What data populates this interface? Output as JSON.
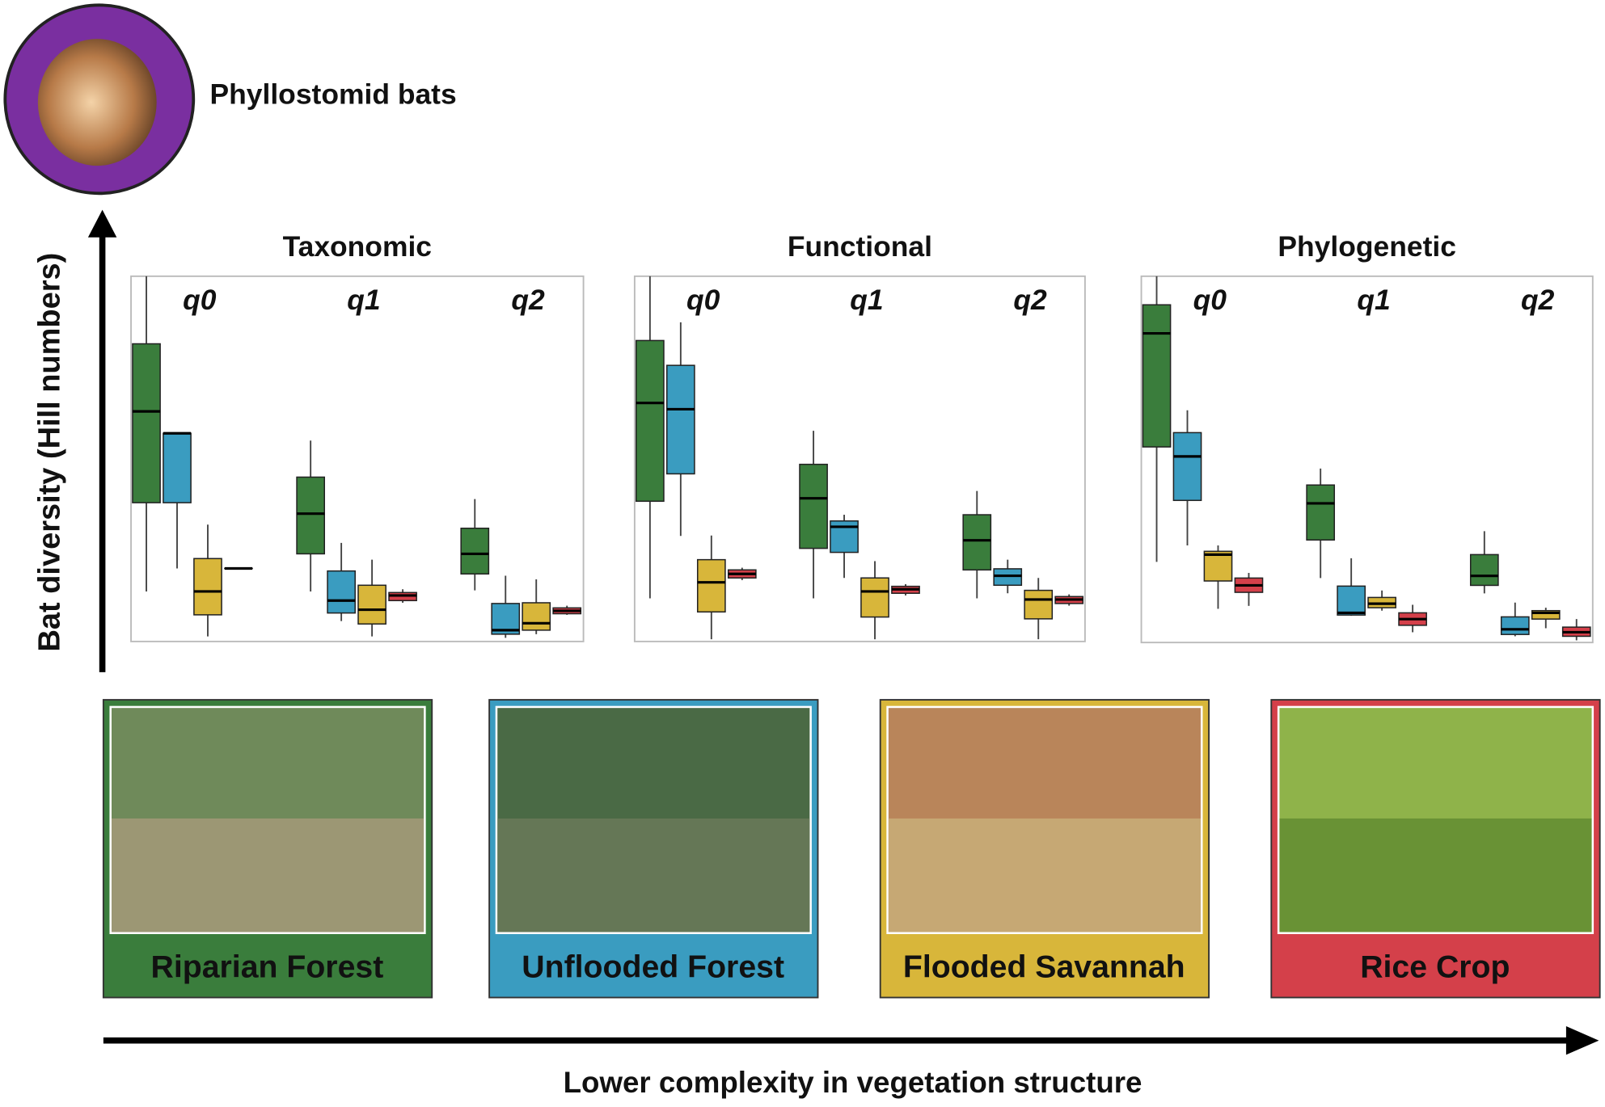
{
  "header": {
    "title": "Phyllostomid bats"
  },
  "y_axis_label": "Bat diversity (Hill numbers)",
  "x_axis_label": "Lower complexity in vegetation structure",
  "chart_data": [
    {
      "type": "box",
      "title": "Taxonomic",
      "categories": [
        "q0",
        "q1",
        "q2"
      ],
      "ylim": [
        0,
        100
      ],
      "series": [
        {
          "name": "Riparian Forest",
          "color": "#3a7d3c",
          "values": [
            {
              "min": 13.7,
              "q1": 38,
              "median": 63,
              "q3": 81.5,
              "max": 100
            },
            {
              "min": 13.7,
              "q1": 24,
              "median": 35,
              "q3": 45,
              "max": 55
            },
            {
              "min": 14,
              "q1": 18.5,
              "median": 24,
              "q3": 31,
              "max": 39
            }
          ]
        },
        {
          "name": "Unflooded Forest",
          "color": "#3a9cc0",
          "values": [
            {
              "min": 20,
              "q1": 38,
              "median": 57,
              "q3": 57,
              "max": 57
            },
            {
              "min": 5.6,
              "q1": 7.8,
              "median": 11.2,
              "q3": 19.3,
              "max": 27
            },
            {
              "min": 1,
              "q1": 2,
              "median": 3.1,
              "q3": 10.4,
              "max": 18
            }
          ]
        },
        {
          "name": "Flooded Savannah",
          "color": "#d8b63a",
          "values": [
            {
              "min": 1.4,
              "q1": 7.3,
              "median": 13.7,
              "q3": 22.7,
              "max": 32
            },
            {
              "min": 1.4,
              "q1": 4.8,
              "median": 8.7,
              "q3": 15.4,
              "max": 22.4
            },
            {
              "min": 2,
              "q1": 3.1,
              "median": 5,
              "q3": 10.6,
              "max": 17
            }
          ]
        },
        {
          "name": "Rice Crop",
          "color": "#d4404a",
          "values": [
            {
              "min": 20,
              "q1": 20,
              "median": 20,
              "q3": 20,
              "max": 20
            },
            {
              "min": 10.6,
              "q1": 11.2,
              "median": 12.6,
              "q3": 13.4,
              "max": 14.3
            },
            {
              "min": 7.3,
              "q1": 7.6,
              "median": 8.4,
              "q3": 9.2,
              "max": 9.8
            }
          ]
        }
      ]
    },
    {
      "type": "box",
      "title": "Functional",
      "categories": [
        "q0",
        "q1",
        "q2"
      ],
      "ylim": [
        0,
        100
      ],
      "series": [
        {
          "color": "#3a7d3c",
          "values": [
            {
              "min": 11.8,
              "q1": 38.4,
              "median": 65.3,
              "q3": 82.4,
              "max": 100
            },
            {
              "min": 11.8,
              "q1": 25.5,
              "median": 39.2,
              "q3": 48.5,
              "max": 57.7
            },
            {
              "min": 11.8,
              "q1": 19.6,
              "median": 27.7,
              "q3": 34.7,
              "max": 41.2
            }
          ]
        },
        {
          "color": "#3a9cc0",
          "values": [
            {
              "min": 28.9,
              "q1": 45.9,
              "median": 63.6,
              "q3": 75.6,
              "max": 87.4
            },
            {
              "min": 17.4,
              "q1": 24.4,
              "median": 31.4,
              "q3": 33,
              "max": 34.7
            },
            {
              "min": 13.2,
              "q1": 15.4,
              "median": 18,
              "q3": 19.9,
              "max": 22.4
            }
          ]
        },
        {
          "color": "#d8b63a",
          "values": [
            {
              "min": 0.6,
              "q1": 8.1,
              "median": 16.2,
              "q3": 22.4,
              "max": 29
            },
            {
              "min": 0.6,
              "q1": 6.7,
              "median": 13.7,
              "q3": 17.4,
              "max": 22
            },
            {
              "min": 0.6,
              "q1": 6.2,
              "median": 11.5,
              "q3": 14,
              "max": 17.4
            }
          ]
        },
        {
          "color": "#d4404a",
          "values": [
            {
              "min": 16.8,
              "q1": 17.4,
              "median": 18.5,
              "q3": 19.6,
              "max": 20.2
            },
            {
              "min": 12.6,
              "q1": 13.2,
              "median": 14.3,
              "q3": 15.1,
              "max": 15.7
            },
            {
              "min": 9.8,
              "q1": 10.4,
              "median": 11.5,
              "q3": 12.3,
              "max": 12.9
            }
          ]
        }
      ]
    },
    {
      "type": "box",
      "title": "Phylogenetic",
      "categories": [
        "q0",
        "q1",
        "q2"
      ],
      "ylim": [
        0,
        100
      ],
      "series": [
        {
          "color": "#3a7d3c",
          "values": [
            {
              "min": 22,
              "q1": 53.4,
              "median": 84.4,
              "q3": 92.2,
              "max": 100
            },
            {
              "min": 17.6,
              "q1": 28,
              "median": 38,
              "q3": 43,
              "max": 47.5
            },
            {
              "min": 13.4,
              "q1": 15.6,
              "median": 18.2,
              "q3": 24,
              "max": 30.4
            }
          ]
        },
        {
          "color": "#3a9cc0",
          "values": [
            {
              "min": 26.5,
              "q1": 38.8,
              "median": 50.8,
              "q3": 57.3,
              "max": 63.4
            },
            {
              "min": 7.3,
              "q1": 7.5,
              "median": 8.1,
              "q3": 15.4,
              "max": 23
            },
            {
              "min": 1.7,
              "q1": 2.2,
              "median": 3.6,
              "q3": 7,
              "max": 10.9
            }
          ]
        },
        {
          "color": "#d8b63a",
          "values": [
            {
              "min": 9.2,
              "q1": 16.8,
              "median": 24,
              "q3": 24.9,
              "max": 26.5
            },
            {
              "min": 8.7,
              "q1": 9.5,
              "median": 10.6,
              "q3": 12.3,
              "max": 14.2
            },
            {
              "min": 3.9,
              "q1": 6.4,
              "median": 8.1,
              "q3": 8.7,
              "max": 9.5
            }
          ]
        },
        {
          "color": "#d4404a",
          "values": [
            {
              "min": 10,
              "q1": 13.7,
              "median": 15.6,
              "q3": 17.6,
              "max": 19
            },
            {
              "min": 2.8,
              "q1": 4.7,
              "median": 6.4,
              "q3": 8.1,
              "max": 10.3
            },
            {
              "min": 0.6,
              "q1": 1.7,
              "median": 2.8,
              "q3": 4.2,
              "max": 6.4
            }
          ]
        }
      ]
    }
  ]
}
